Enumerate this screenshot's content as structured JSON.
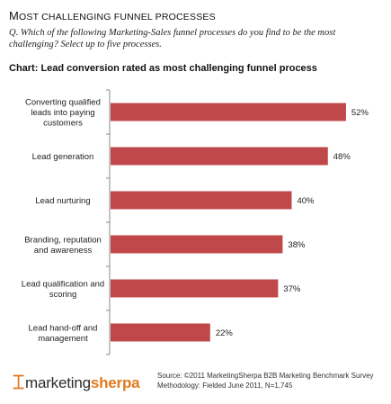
{
  "header": {
    "title_cap": "M",
    "title_rest": "OST CHALLENGING FUNNEL PROCESSES",
    "question": "Q. Which of the following Marketing-Sales funnel processes do you find to be the most challenging? Select up to five processes.",
    "chart_title": "Chart: Lead conversion rated as most challenging funnel process"
  },
  "chart_data": {
    "type": "bar",
    "orientation": "horizontal",
    "categories": [
      [
        "Converting qualified",
        "leads into paying",
        "customers"
      ],
      [
        "Lead generation"
      ],
      [
        "Lead nurturing"
      ],
      [
        "Branding, reputation",
        "and awareness"
      ],
      [
        "Lead qualification and",
        "scoring"
      ],
      [
        "Lead hand-off and",
        "management"
      ]
    ],
    "values": [
      52,
      48,
      40,
      38,
      37,
      22
    ],
    "value_labels": [
      "52%",
      "48%",
      "40%",
      "38%",
      "37%",
      "22%"
    ],
    "xlim": [
      0,
      54
    ],
    "bar_color": "#c0474a",
    "grid": false
  },
  "footer": {
    "logo_part1": "marketing",
    "logo_part2": "sherpa",
    "source_line1": "Source: ©2011 MarketingSherpa B2B Marketing Benchmark Survey",
    "source_line2": "Methodology: Fielded June 2011, N=1,745"
  }
}
